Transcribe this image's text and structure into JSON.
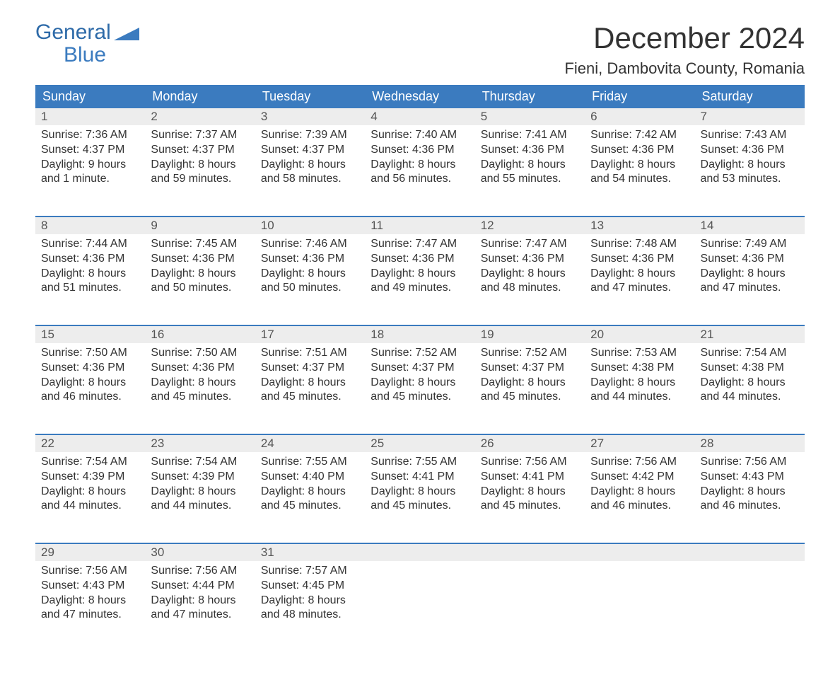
{
  "brand": {
    "word1": "General",
    "word2": "Blue"
  },
  "title": "December 2024",
  "location": "Fieni, Dambovita County, Romania",
  "colors": {
    "header_bg": "#3b7bbf",
    "header_text": "#ffffff",
    "daynum_bg": "#ededed",
    "body_bg": "#ffffff",
    "text": "#333333",
    "logo": "#3b7bbf"
  },
  "weekdays": [
    "Sunday",
    "Monday",
    "Tuesday",
    "Wednesday",
    "Thursday",
    "Friday",
    "Saturday"
  ],
  "weeks": [
    [
      {
        "n": "1",
        "sunrise": "Sunrise: 7:36 AM",
        "sunset": "Sunset: 4:37 PM",
        "day1": "Daylight: 9 hours",
        "day2": "and 1 minute."
      },
      {
        "n": "2",
        "sunrise": "Sunrise: 7:37 AM",
        "sunset": "Sunset: 4:37 PM",
        "day1": "Daylight: 8 hours",
        "day2": "and 59 minutes."
      },
      {
        "n": "3",
        "sunrise": "Sunrise: 7:39 AM",
        "sunset": "Sunset: 4:37 PM",
        "day1": "Daylight: 8 hours",
        "day2": "and 58 minutes."
      },
      {
        "n": "4",
        "sunrise": "Sunrise: 7:40 AM",
        "sunset": "Sunset: 4:36 PM",
        "day1": "Daylight: 8 hours",
        "day2": "and 56 minutes."
      },
      {
        "n": "5",
        "sunrise": "Sunrise: 7:41 AM",
        "sunset": "Sunset: 4:36 PM",
        "day1": "Daylight: 8 hours",
        "day2": "and 55 minutes."
      },
      {
        "n": "6",
        "sunrise": "Sunrise: 7:42 AM",
        "sunset": "Sunset: 4:36 PM",
        "day1": "Daylight: 8 hours",
        "day2": "and 54 minutes."
      },
      {
        "n": "7",
        "sunrise": "Sunrise: 7:43 AM",
        "sunset": "Sunset: 4:36 PM",
        "day1": "Daylight: 8 hours",
        "day2": "and 53 minutes."
      }
    ],
    [
      {
        "n": "8",
        "sunrise": "Sunrise: 7:44 AM",
        "sunset": "Sunset: 4:36 PM",
        "day1": "Daylight: 8 hours",
        "day2": "and 51 minutes."
      },
      {
        "n": "9",
        "sunrise": "Sunrise: 7:45 AM",
        "sunset": "Sunset: 4:36 PM",
        "day1": "Daylight: 8 hours",
        "day2": "and 50 minutes."
      },
      {
        "n": "10",
        "sunrise": "Sunrise: 7:46 AM",
        "sunset": "Sunset: 4:36 PM",
        "day1": "Daylight: 8 hours",
        "day2": "and 50 minutes."
      },
      {
        "n": "11",
        "sunrise": "Sunrise: 7:47 AM",
        "sunset": "Sunset: 4:36 PM",
        "day1": "Daylight: 8 hours",
        "day2": "and 49 minutes."
      },
      {
        "n": "12",
        "sunrise": "Sunrise: 7:47 AM",
        "sunset": "Sunset: 4:36 PM",
        "day1": "Daylight: 8 hours",
        "day2": "and 48 minutes."
      },
      {
        "n": "13",
        "sunrise": "Sunrise: 7:48 AM",
        "sunset": "Sunset: 4:36 PM",
        "day1": "Daylight: 8 hours",
        "day2": "and 47 minutes."
      },
      {
        "n": "14",
        "sunrise": "Sunrise: 7:49 AM",
        "sunset": "Sunset: 4:36 PM",
        "day1": "Daylight: 8 hours",
        "day2": "and 47 minutes."
      }
    ],
    [
      {
        "n": "15",
        "sunrise": "Sunrise: 7:50 AM",
        "sunset": "Sunset: 4:36 PM",
        "day1": "Daylight: 8 hours",
        "day2": "and 46 minutes."
      },
      {
        "n": "16",
        "sunrise": "Sunrise: 7:50 AM",
        "sunset": "Sunset: 4:36 PM",
        "day1": "Daylight: 8 hours",
        "day2": "and 45 minutes."
      },
      {
        "n": "17",
        "sunrise": "Sunrise: 7:51 AM",
        "sunset": "Sunset: 4:37 PM",
        "day1": "Daylight: 8 hours",
        "day2": "and 45 minutes."
      },
      {
        "n": "18",
        "sunrise": "Sunrise: 7:52 AM",
        "sunset": "Sunset: 4:37 PM",
        "day1": "Daylight: 8 hours",
        "day2": "and 45 minutes."
      },
      {
        "n": "19",
        "sunrise": "Sunrise: 7:52 AM",
        "sunset": "Sunset: 4:37 PM",
        "day1": "Daylight: 8 hours",
        "day2": "and 45 minutes."
      },
      {
        "n": "20",
        "sunrise": "Sunrise: 7:53 AM",
        "sunset": "Sunset: 4:38 PM",
        "day1": "Daylight: 8 hours",
        "day2": "and 44 minutes."
      },
      {
        "n": "21",
        "sunrise": "Sunrise: 7:54 AM",
        "sunset": "Sunset: 4:38 PM",
        "day1": "Daylight: 8 hours",
        "day2": "and 44 minutes."
      }
    ],
    [
      {
        "n": "22",
        "sunrise": "Sunrise: 7:54 AM",
        "sunset": "Sunset: 4:39 PM",
        "day1": "Daylight: 8 hours",
        "day2": "and 44 minutes."
      },
      {
        "n": "23",
        "sunrise": "Sunrise: 7:54 AM",
        "sunset": "Sunset: 4:39 PM",
        "day1": "Daylight: 8 hours",
        "day2": "and 44 minutes."
      },
      {
        "n": "24",
        "sunrise": "Sunrise: 7:55 AM",
        "sunset": "Sunset: 4:40 PM",
        "day1": "Daylight: 8 hours",
        "day2": "and 45 minutes."
      },
      {
        "n": "25",
        "sunrise": "Sunrise: 7:55 AM",
        "sunset": "Sunset: 4:41 PM",
        "day1": "Daylight: 8 hours",
        "day2": "and 45 minutes."
      },
      {
        "n": "26",
        "sunrise": "Sunrise: 7:56 AM",
        "sunset": "Sunset: 4:41 PM",
        "day1": "Daylight: 8 hours",
        "day2": "and 45 minutes."
      },
      {
        "n": "27",
        "sunrise": "Sunrise: 7:56 AM",
        "sunset": "Sunset: 4:42 PM",
        "day1": "Daylight: 8 hours",
        "day2": "and 46 minutes."
      },
      {
        "n": "28",
        "sunrise": "Sunrise: 7:56 AM",
        "sunset": "Sunset: 4:43 PM",
        "day1": "Daylight: 8 hours",
        "day2": "and 46 minutes."
      }
    ],
    [
      {
        "n": "29",
        "sunrise": "Sunrise: 7:56 AM",
        "sunset": "Sunset: 4:43 PM",
        "day1": "Daylight: 8 hours",
        "day2": "and 47 minutes."
      },
      {
        "n": "30",
        "sunrise": "Sunrise: 7:56 AM",
        "sunset": "Sunset: 4:44 PM",
        "day1": "Daylight: 8 hours",
        "day2": "and 47 minutes."
      },
      {
        "n": "31",
        "sunrise": "Sunrise: 7:57 AM",
        "sunset": "Sunset: 4:45 PM",
        "day1": "Daylight: 8 hours",
        "day2": "and 48 minutes."
      },
      null,
      null,
      null,
      null
    ]
  ]
}
